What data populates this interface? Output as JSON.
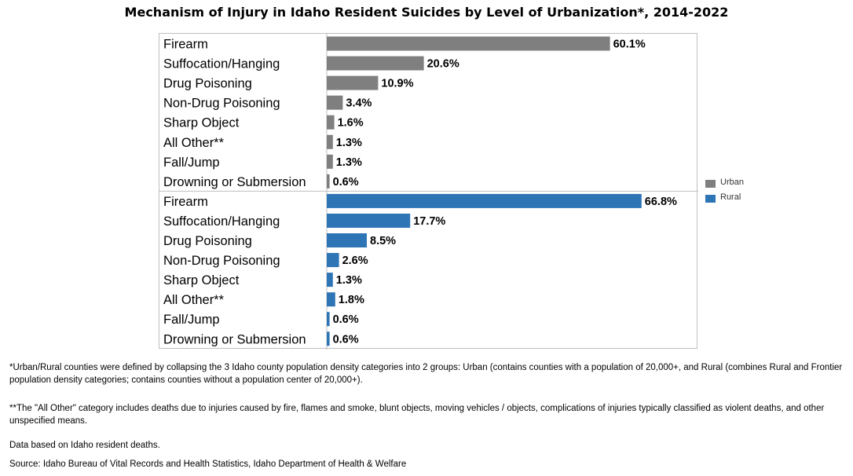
{
  "chart_data": {
    "type": "bar",
    "orientation": "horizontal",
    "title": "Mechanism of Injury in Idaho Resident Suicides by Level of Urbanization*, 2014-2022",
    "xlim": [
      0,
      80
    ],
    "grid": false,
    "legend_position": "right",
    "categories": [
      "Firearm",
      "Suffocation/Hanging",
      "Drug Poisoning",
      "Non-Drug Poisoning",
      "Sharp Object",
      "All Other**",
      "Fall/Jump",
      "Drowning or Submersion"
    ],
    "series": [
      {
        "name": "Urban",
        "color": "#7f7f7f",
        "values": [
          60.1,
          20.6,
          10.9,
          3.4,
          1.6,
          1.3,
          1.3,
          0.6
        ],
        "labels": [
          "60.1%",
          "20.6%",
          "10.9%",
          "3.4%",
          "1.6%",
          "1.3%",
          "1.3%",
          "0.6%"
        ]
      },
      {
        "name": "Rural",
        "color": "#2e75b6",
        "values": [
          66.8,
          17.7,
          8.5,
          2.6,
          1.3,
          1.8,
          0.6,
          0.6
        ],
        "labels": [
          "66.8%",
          "17.7%",
          "8.5%",
          "2.6%",
          "1.3%",
          "1.8%",
          "0.6%",
          "0.6%"
        ]
      }
    ]
  },
  "notes": {
    "urbanization": "*Urban/Rural counties were defined by collapsing the 3 Idaho county population density categories into 2 groups: Urban (contains counties with a population of 20,000+, and Rural (combines Rural and Frontier population density categories; contains counties without a population center of 20,000+).",
    "all_other": "**The \"All Other\" category includes deaths due to injuries caused by fire, flames and smoke, blunt objects, moving vehicles / objects, complications of injuries typically classified as violent deaths, and other unspecified means.",
    "data_basis": "Data based on Idaho resident deaths.",
    "source": "Source: Idaho Bureau of Vital Records and Health Statistics, Idaho Department of Health & Welfare"
  }
}
